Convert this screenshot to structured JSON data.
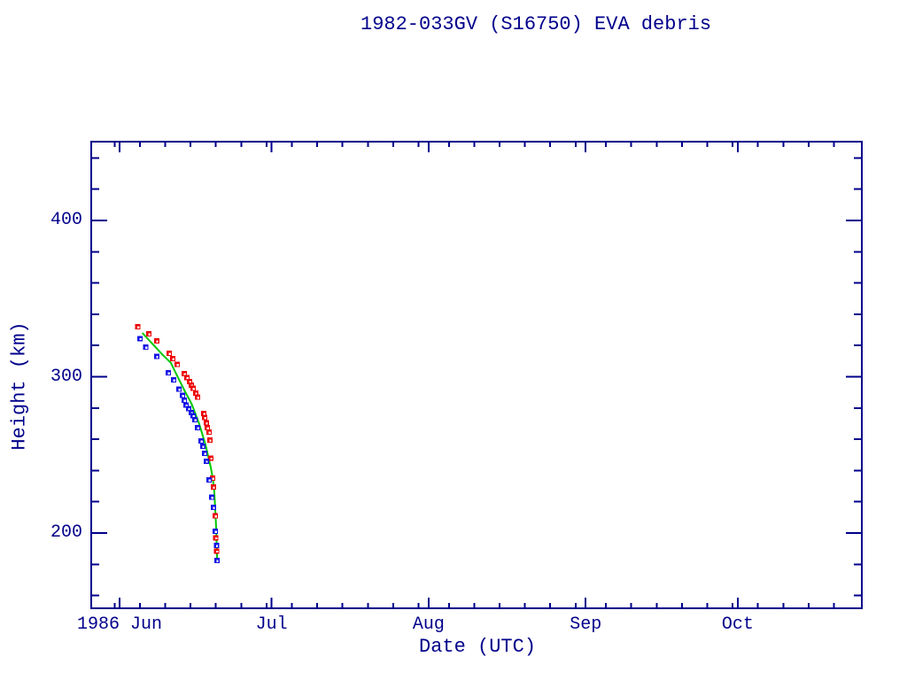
{
  "page": {
    "background": "#FFFFFF"
  },
  "chart_data": {
    "type": "scatter",
    "title": "1982-033GV (S16750) EVA debris",
    "xlabel": "Date (UTC)",
    "ylabel": "Height (km)",
    "colors": {
      "axis": "#00008B",
      "text": "#00008B",
      "background": "#FFFFFF"
    },
    "x_axis": {
      "unit": "date",
      "year": "1986",
      "range_days_from_jun1": [
        -5.6,
        146.5
      ],
      "major_ticks": [
        {
          "offset_days": 0,
          "label": "1986 Jun"
        },
        {
          "offset_days": 30,
          "label": "Jul"
        },
        {
          "offset_days": 61,
          "label": "Aug"
        },
        {
          "offset_days": 92,
          "label": "Sep"
        },
        {
          "offset_days": 122,
          "label": "Oct"
        }
      ],
      "minor_tick_offsets": [
        -1,
        4,
        9,
        14,
        19,
        24,
        29,
        34,
        39,
        44,
        49,
        54,
        59,
        65,
        70,
        75,
        80,
        85,
        90,
        96,
        101,
        106,
        111,
        116,
        121,
        126,
        131,
        136,
        141
      ]
    },
    "y_axis": {
      "range_km": [
        152,
        450
      ],
      "major_ticks": [
        {
          "value": 200,
          "label": "200"
        },
        {
          "value": 300,
          "label": "300"
        },
        {
          "value": 400,
          "label": "400"
        }
      ],
      "minor_tick_values": [
        160,
        180,
        220,
        240,
        260,
        280,
        320,
        340,
        360,
        380,
        420,
        440
      ]
    },
    "series": [
      {
        "name": "green-fit-curve",
        "kind": "line",
        "color": "#00C800",
        "points_day_june_height_km": [
          [
            5.5,
            328
          ],
          [
            6.5,
            324.5
          ],
          [
            7.5,
            321
          ],
          [
            8.5,
            317.5
          ],
          [
            9.5,
            314
          ],
          [
            10.3,
            311.5
          ],
          [
            11.1,
            309
          ],
          [
            12,
            303
          ],
          [
            13,
            296.5
          ],
          [
            14,
            290
          ],
          [
            15,
            284
          ],
          [
            15.3,
            282
          ],
          [
            16,
            276
          ],
          [
            16.7,
            270
          ],
          [
            17.4,
            262.5
          ],
          [
            18,
            256
          ],
          [
            18.5,
            249
          ],
          [
            19,
            242
          ],
          [
            19.4,
            235
          ],
          [
            19.7,
            226
          ],
          [
            19.9,
            214
          ],
          [
            20.05,
            204
          ],
          [
            20.15,
            194
          ],
          [
            20.25,
            184
          ]
        ]
      },
      {
        "name": "red-square-series",
        "kind": "scatter",
        "marker": "square-with-dot",
        "color": "#EE0000",
        "points_day_june_height_km": [
          [
            4.6,
            332
          ],
          [
            6.8,
            327.5
          ],
          [
            8.3,
            323
          ],
          [
            10.8,
            315
          ],
          [
            11.5,
            311.5
          ],
          [
            12.4,
            308
          ],
          [
            13.8,
            302
          ],
          [
            14.3,
            299.5
          ],
          [
            14.8,
            297
          ],
          [
            15.2,
            294.5
          ],
          [
            15.5,
            292.5
          ],
          [
            16.0,
            289.5
          ],
          [
            16.4,
            287
          ],
          [
            17.6,
            276.5
          ],
          [
            17.8,
            274
          ],
          [
            18.1,
            270.5
          ],
          [
            18.3,
            267.5
          ],
          [
            18.7,
            264.5
          ],
          [
            18.8,
            259.5
          ],
          [
            19.0,
            248
          ],
          [
            19.4,
            235
          ],
          [
            19.5,
            229.5
          ],
          [
            19.9,
            211
          ],
          [
            20.0,
            197
          ],
          [
            20.15,
            188.5
          ]
        ]
      },
      {
        "name": "blue-square-series",
        "kind": "scatter",
        "marker": "square-with-dot",
        "color": "#1212E6",
        "points_day_june_height_km": [
          [
            5.0,
            324.5
          ],
          [
            6.2,
            319
          ],
          [
            8.3,
            313
          ],
          [
            10.6,
            302.5
          ],
          [
            11.7,
            298
          ],
          [
            12.7,
            292
          ],
          [
            13.4,
            288
          ],
          [
            13.8,
            285
          ],
          [
            14.1,
            282
          ],
          [
            14.6,
            279.5
          ],
          [
            15.2,
            277
          ],
          [
            15.5,
            275
          ],
          [
            15.9,
            272.5
          ],
          [
            16.4,
            267.5
          ],
          [
            17.1,
            259
          ],
          [
            17.4,
            255.5
          ],
          [
            17.8,
            251
          ],
          [
            18.1,
            246
          ],
          [
            18.7,
            234
          ],
          [
            19.2,
            223
          ],
          [
            19.5,
            216.5
          ],
          [
            19.9,
            201
          ],
          [
            20.1,
            192
          ],
          [
            20.2,
            182.5
          ]
        ]
      }
    ]
  }
}
